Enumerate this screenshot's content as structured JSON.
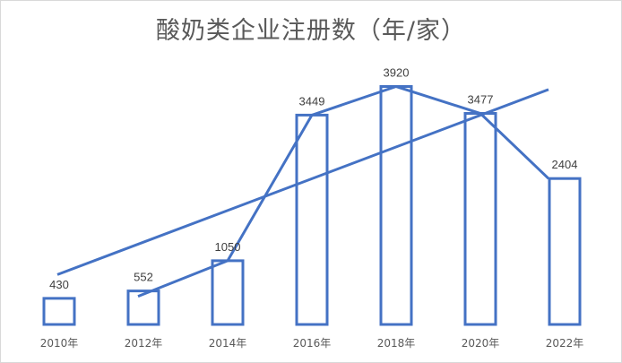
{
  "chart_data": {
    "type": "bar",
    "title": "酸奶类企业注册数（年/家）",
    "categories": [
      "2010年",
      "2012年",
      "2014年",
      "2016年",
      "2018年",
      "2020年",
      "2022年"
    ],
    "values": [
      430,
      552,
      1050,
      3449,
      3920,
      3477,
      2404
    ],
    "data_labels": [
      "430",
      "552",
      "1050",
      "3449",
      "3920",
      "3477",
      "2404"
    ],
    "overlay_line": {
      "type": "line",
      "values": [
        null,
        552,
        1050,
        3449,
        3920,
        3477,
        2404
      ]
    },
    "trendline": {
      "type": "linear"
    },
    "xlabel": "",
    "ylabel": "",
    "ylim": [
      0,
      4400
    ],
    "grid": false,
    "legend": "none",
    "colors": {
      "bar_stroke": "#4472c4",
      "line": "#4472c4",
      "title": "#595959",
      "text": "#404040"
    }
  }
}
